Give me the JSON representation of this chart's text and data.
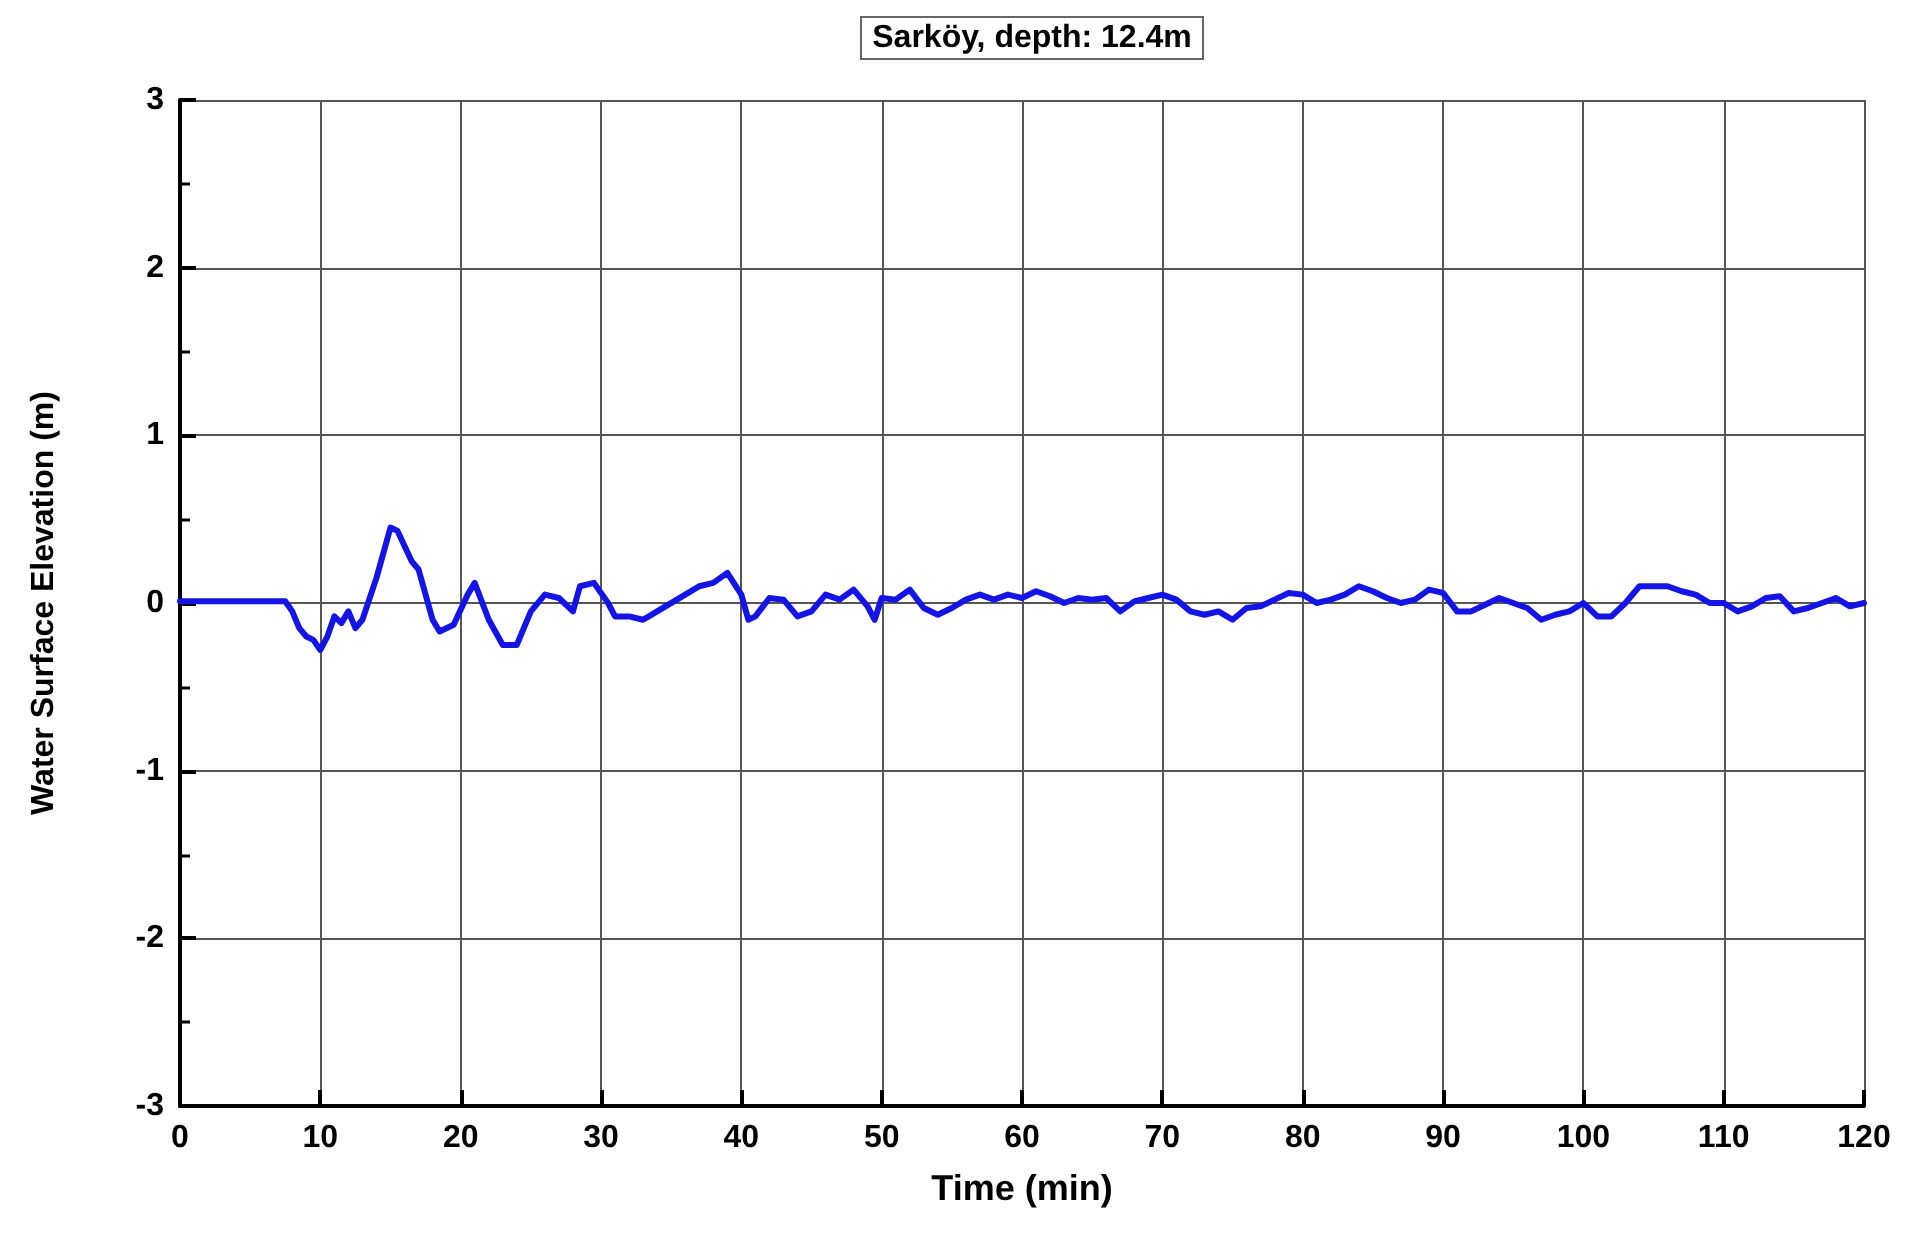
{
  "chart_data": {
    "type": "line",
    "title": "Sarköy, depth: 12.4m",
    "xlabel": "Time (min)",
    "ylabel": "Water Surface Elevation (m)",
    "xlim": [
      0,
      120
    ],
    "xticks": [
      0,
      10,
      20,
      30,
      40,
      50,
      60,
      70,
      80,
      90,
      100,
      110,
      120
    ],
    "ylim": [
      -3,
      3
    ],
    "yticks": [
      -3,
      -2,
      -1,
      0,
      1,
      2,
      3
    ],
    "grid": true,
    "marker": "none",
    "line_style": "solid",
    "series": [
      {
        "color": "#1414e6",
        "x": [
          0,
          5,
          7.5,
          8,
          8.5,
          9,
          9.5,
          10,
          10.5,
          11,
          11.5,
          12,
          12.5,
          13,
          14,
          15,
          15.5,
          16.5,
          17,
          18,
          18.5,
          19.5,
          20.5,
          21,
          22,
          23,
          24,
          25,
          26,
          27,
          28,
          28.5,
          29.5,
          30.5,
          31,
          32,
          33,
          34,
          36,
          37,
          38,
          39,
          40,
          40.5,
          41,
          42,
          43,
          44,
          45,
          46,
          47,
          48,
          49,
          49.5,
          50,
          51,
          52,
          53,
          54,
          55,
          56,
          57,
          58,
          59,
          60,
          61,
          62,
          63,
          64,
          65,
          66,
          67,
          68,
          69,
          70,
          71,
          72,
          73,
          74,
          75,
          76,
          77,
          78,
          79,
          80,
          81,
          82,
          83,
          84,
          85,
          86,
          87,
          88,
          89,
          90,
          91,
          92,
          93,
          94,
          95,
          96,
          97,
          98,
          99,
          100,
          101,
          102,
          103,
          104,
          105,
          106,
          107,
          108,
          109,
          110,
          111,
          112,
          113,
          114,
          115,
          116,
          117,
          118,
          119,
          120
        ],
        "values": [
          0.01,
          0.01,
          0.01,
          -0.05,
          -0.15,
          -0.2,
          -0.22,
          -0.28,
          -0.2,
          -0.08,
          -0.12,
          -0.05,
          -0.15,
          -0.1,
          0.15,
          0.45,
          0.43,
          0.25,
          0.2,
          -0.1,
          -0.17,
          -0.13,
          0.05,
          0.12,
          -0.1,
          -0.25,
          -0.25,
          -0.05,
          0.05,
          0.03,
          -0.05,
          0.1,
          0.12,
          0.0,
          -0.08,
          -0.08,
          -0.1,
          -0.05,
          0.05,
          0.1,
          0.12,
          0.18,
          0.05,
          -0.1,
          -0.08,
          0.03,
          0.02,
          -0.08,
          -0.05,
          0.05,
          0.02,
          0.08,
          -0.02,
          -0.1,
          0.03,
          0.02,
          0.08,
          -0.03,
          -0.07,
          -0.03,
          0.02,
          0.05,
          0.02,
          0.05,
          0.03,
          0.07,
          0.04,
          0.0,
          0.03,
          0.02,
          0.03,
          -0.05,
          0.01,
          0.03,
          0.05,
          0.02,
          -0.05,
          -0.07,
          -0.05,
          -0.1,
          -0.03,
          -0.02,
          0.02,
          0.06,
          0.05,
          0.0,
          0.02,
          0.05,
          0.1,
          0.07,
          0.03,
          0.0,
          0.02,
          0.08,
          0.06,
          -0.05,
          -0.05,
          -0.01,
          0.03,
          0.0,
          -0.03,
          -0.1,
          -0.07,
          -0.05,
          0.0,
          -0.08,
          -0.08,
          0.0,
          0.1,
          0.1,
          0.1,
          0.07,
          0.05,
          0.0,
          0.0,
          -0.05,
          -0.02,
          0.03,
          0.04,
          -0.05,
          -0.03,
          0.0,
          0.03,
          -0.02,
          0.0
        ]
      }
    ]
  }
}
